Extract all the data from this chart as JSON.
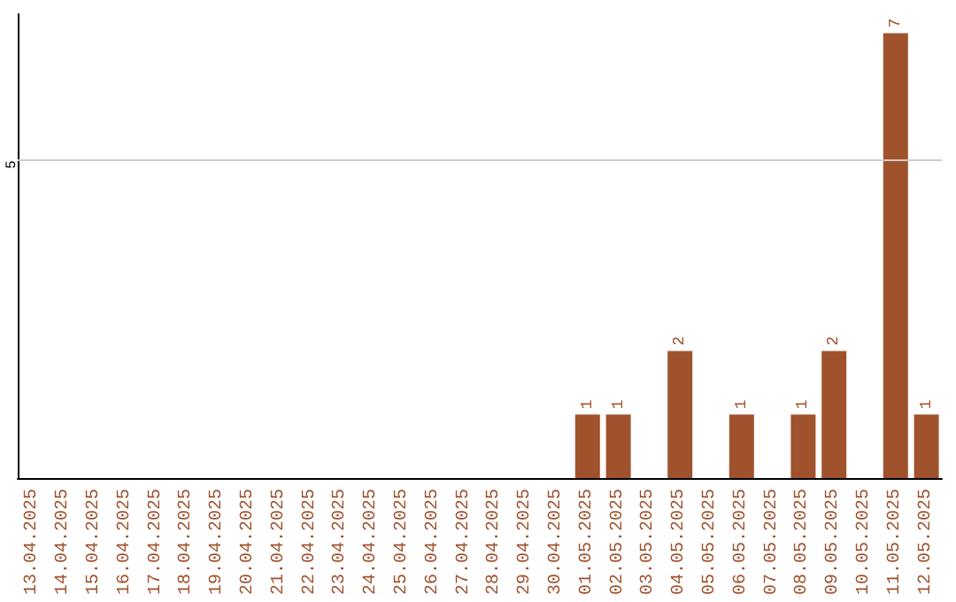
{
  "chart_data": {
    "type": "bar",
    "categories": [
      "13.04.2025",
      "14.04.2025",
      "15.04.2025",
      "16.04.2025",
      "17.04.2025",
      "18.04.2025",
      "19.04.2025",
      "20.04.2025",
      "21.04.2025",
      "22.04.2025",
      "23.04.2025",
      "24.04.2025",
      "25.04.2025",
      "26.04.2025",
      "27.04.2025",
      "28.04.2025",
      "29.04.2025",
      "30.04.2025",
      "01.05.2025",
      "02.05.2025",
      "03.05.2025",
      "04.05.2025",
      "05.05.2025",
      "06.05.2025",
      "07.05.2025",
      "08.05.2025",
      "09.05.2025",
      "10.05.2025",
      "11.05.2025",
      "12.05.2025"
    ],
    "values": [
      null,
      null,
      null,
      null,
      null,
      null,
      null,
      null,
      null,
      null,
      null,
      null,
      null,
      null,
      null,
      null,
      null,
      null,
      1,
      1,
      null,
      2,
      null,
      1,
      null,
      1,
      2,
      null,
      7,
      1
    ],
    "data_labels": true,
    "color": "#a0522d",
    "ylim": [
      0,
      7.3
    ],
    "ref_lines": [
      {
        "axis": "y",
        "value": 5,
        "label": "5",
        "color": "#cccccc"
      }
    ]
  }
}
